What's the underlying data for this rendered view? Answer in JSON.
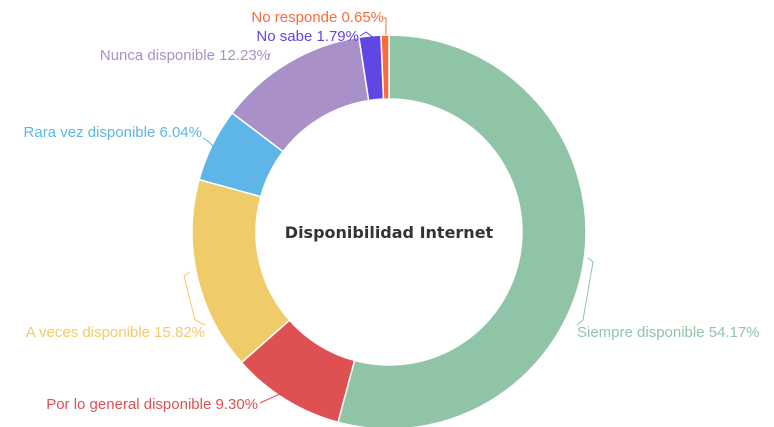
{
  "chart_data": {
    "type": "pie",
    "subtype": "donut",
    "center_label": "Disponibilidad Internet",
    "unit": "%",
    "slices": [
      {
        "label": "Siempre disponible",
        "value": 54.17,
        "display": "54.17%",
        "color": "#8fc4a7"
      },
      {
        "label": "Por lo general disponible",
        "value": 9.3,
        "display": "9.30%",
        "color": "#de5052"
      },
      {
        "label": "A veces disponible",
        "value": 15.82,
        "display": "15.82%",
        "color": "#f0cb69"
      },
      {
        "label": "Rara vez disponible",
        "value": 6.04,
        "display": "6.04%",
        "color": "#5db6e7"
      },
      {
        "label": "Nunca disponible",
        "value": 12.23,
        "display": "12.23%",
        "color": "#aa90c8"
      },
      {
        "label": "No sabe",
        "value": 1.79,
        "display": "1.79%",
        "color": "#6146e3"
      },
      {
        "label": "No responde",
        "value": 0.65,
        "display": "0.65%",
        "color": "#f86c3a"
      }
    ],
    "legend": "none"
  }
}
